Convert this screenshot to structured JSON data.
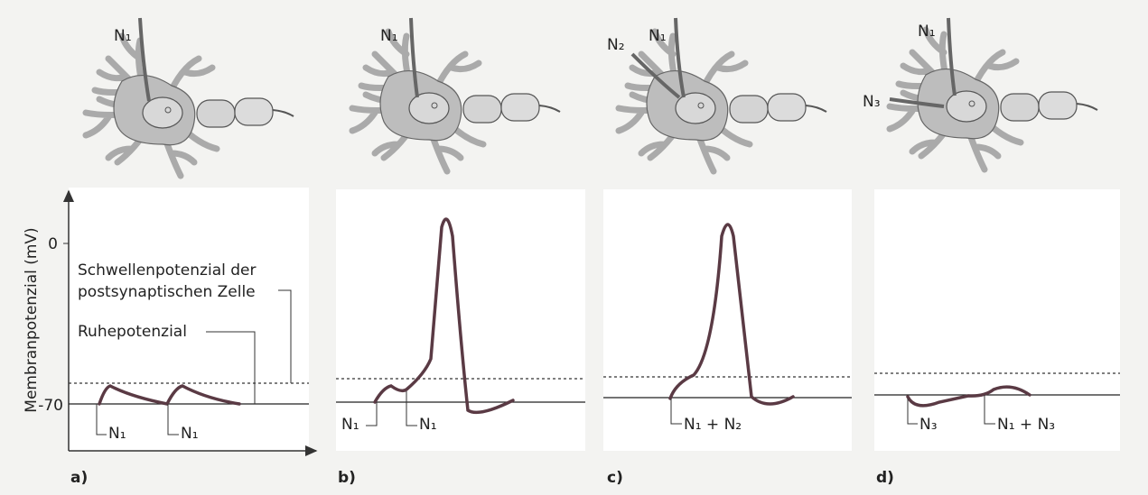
{
  "neurons": [
    {
      "inputs": [
        "N₁"
      ]
    },
    {
      "inputs": [
        "N₁"
      ]
    },
    {
      "inputs": [
        "N₂",
        "N₁"
      ]
    },
    {
      "inputs": [
        "N₁",
        "N₃"
      ]
    }
  ],
  "axis": {
    "label": "Membranpotenzial (mV)",
    "ticks": [
      0,
      -70
    ]
  },
  "annotations": {
    "threshold": [
      "Schwellenpotenzial der",
      "postsynaptischen Zelle"
    ],
    "rest": "Ruhepotenzial"
  },
  "panels": [
    {
      "label": "a)",
      "stimuli": [
        "N₁",
        "N₁"
      ]
    },
    {
      "label": "b)",
      "stimuli": [
        "N₁",
        "N₁"
      ]
    },
    {
      "label": "c)",
      "stimuli": [
        "N₁ + N₂"
      ]
    },
    {
      "label": "d)",
      "stimuli": [
        "N₃",
        "N₁ + N₃"
      ]
    }
  ]
}
